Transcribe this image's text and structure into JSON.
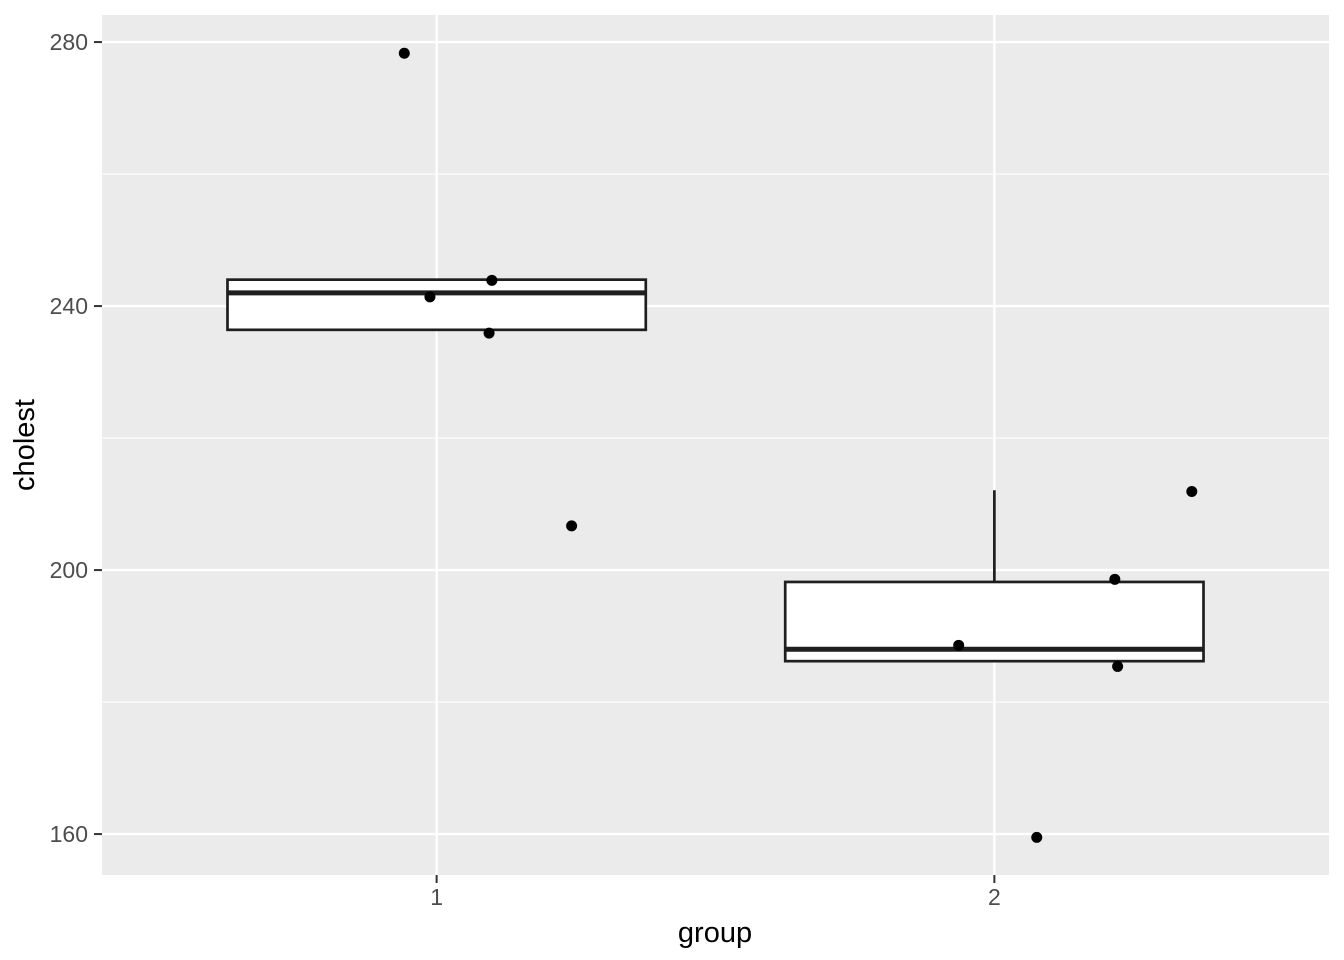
{
  "chart_data": {
    "type": "boxplot",
    "title": "",
    "xlabel": "group",
    "ylabel": "cholest",
    "legend": "none",
    "grid": "major-and-minor-horizontal, major-vertical, white-on-grey",
    "x_categories": [
      "1",
      "2"
    ],
    "x_positions": [
      1,
      2
    ],
    "xlim": [
      0.4,
      2.6
    ],
    "ylim": [
      153.8,
      284.1
    ],
    "y_major_ticks": [
      160,
      200,
      240,
      280
    ],
    "y_minor_gridlines": [
      180,
      220,
      260
    ],
    "boxes": [
      {
        "group": "1",
        "x": 1,
        "box_width": 0.75,
        "q1": 236.4,
        "median": 242.0,
        "q3": 244.0,
        "whisker_low": 236.4,
        "whisker_high": 244.0,
        "outliers_shown": false
      },
      {
        "group": "2",
        "x": 2,
        "box_width": 0.75,
        "q1": 186.2,
        "median": 188.0,
        "q3": 198.2,
        "whisker_low": 186.2,
        "whisker_high": 212.1,
        "outliers_shown": false
      }
    ],
    "jitter_points": [
      {
        "group": "1",
        "x": 0.942,
        "y": 278.3
      },
      {
        "group": "1",
        "x": 1.099,
        "y": 243.9
      },
      {
        "group": "1",
        "x": 0.988,
        "y": 241.4
      },
      {
        "group": "1",
        "x": 1.094,
        "y": 235.9
      },
      {
        "group": "1",
        "x": 1.242,
        "y": 206.7
      },
      {
        "group": "2",
        "x": 2.354,
        "y": 211.9
      },
      {
        "group": "2",
        "x": 2.216,
        "y": 198.6
      },
      {
        "group": "2",
        "x": 1.936,
        "y": 188.6
      },
      {
        "group": "2",
        "x": 2.221,
        "y": 185.4
      },
      {
        "group": "2",
        "x": 2.076,
        "y": 159.5
      }
    ],
    "style": {
      "panel_bg": "#EBEBEB",
      "outer_bg": "#FFFFFF",
      "grid_color": "#FFFFFF",
      "box_stroke": "#1F1F1F",
      "box_fill": "#FFFFFF",
      "point_color": "#000000",
      "tick_mark_color": "#333333",
      "tick_label_color": "#4D4D4D",
      "axis_title_color": "#000000"
    }
  }
}
